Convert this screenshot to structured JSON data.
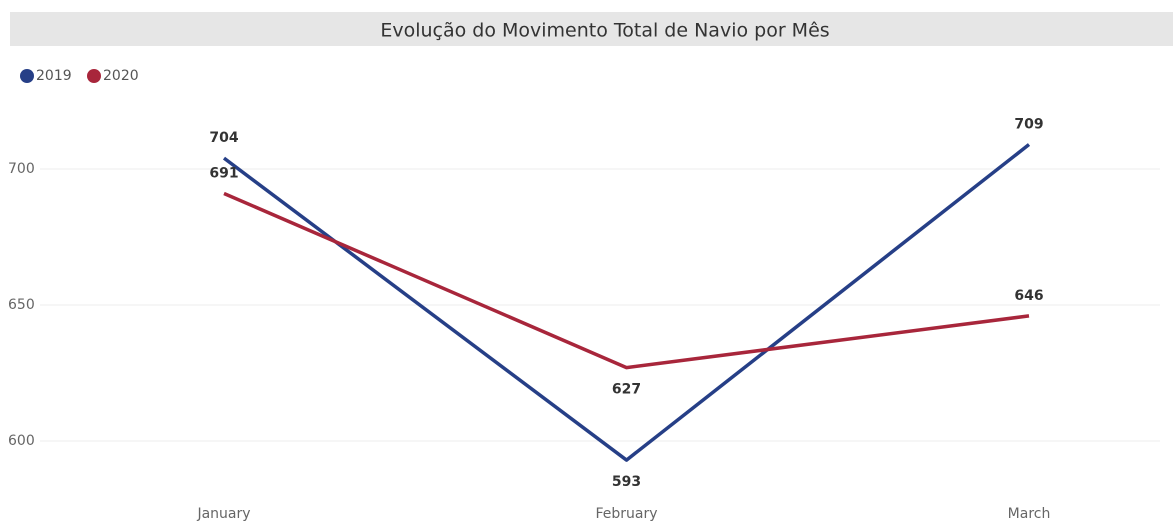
{
  "chart_data": {
    "type": "line",
    "title": "Evolução do Movimento Total de Navio por Mês",
    "categories": [
      "January",
      "February",
      "March"
    ],
    "series": [
      {
        "name": "2019",
        "color": "#263f87",
        "values": [
          704,
          593,
          709
        ]
      },
      {
        "name": "2020",
        "color": "#a8263b",
        "values": [
          691,
          627,
          646
        ]
      }
    ],
    "ylim": [
      582,
      730
    ],
    "yticks": [
      600,
      650,
      700
    ],
    "grid": true,
    "legend": "top-left"
  }
}
